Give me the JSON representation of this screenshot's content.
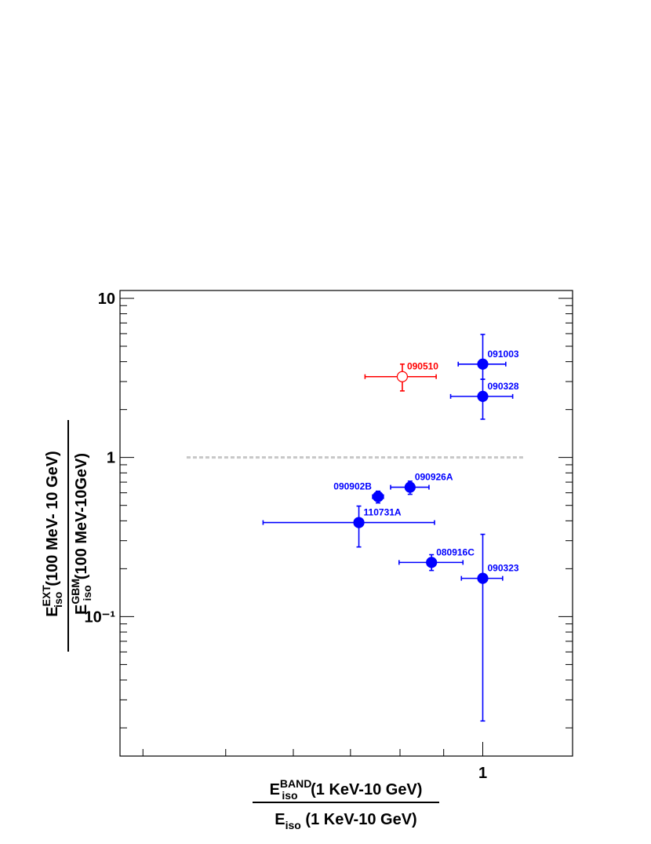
{
  "chart_data": {
    "type": "scatter",
    "xscale": "log",
    "yscale": "log",
    "xlim": [
      0.376,
      1.274
    ],
    "ylim": [
      0.0133,
      11.2
    ],
    "xticks": [
      1
    ],
    "xminor": [
      0.4,
      0.5,
      0.6,
      0.7,
      0.8,
      0.9
    ],
    "yticks": [
      10,
      1,
      {
        "value": 0.1,
        "label": "10⁻¹"
      }
    ],
    "yminor": [
      0.02,
      0.03,
      0.04,
      0.05,
      0.06,
      0.07,
      0.08,
      0.09,
      0.2,
      0.3,
      0.4,
      0.5,
      0.6,
      0.7,
      0.8,
      0.9,
      2,
      3,
      4,
      5,
      6,
      7,
      8,
      9
    ],
    "hline": {
      "y": 1,
      "xrange": [
        0.45,
        1.12
      ],
      "color": "#c8c8c8"
    },
    "x_title": {
      "num": {
        "base": "E",
        "sup": "BAND",
        "sub": "iso",
        "rest": " (1 KeV-10 GeV)"
      },
      "den": {
        "base": "E",
        "sub": "iso",
        "rest": " (1 KeV-10 GeV)"
      }
    },
    "y_title": {
      "num": {
        "base": "E",
        "sup": "EXT",
        "sub": "iso",
        "rest": " (100 MeV- 10 GeV)"
      },
      "den": {
        "base": "E",
        "sup": "GBM",
        "sub": "iso",
        "rest": " (100 MeV-10GeV)"
      }
    },
    "points": [
      {
        "label": "091003",
        "color": "#0000ff",
        "open": false,
        "x": 1.0,
        "y": 3.86,
        "xrange": [
          0.936,
          1.064
        ],
        "yrange": [
          3.1,
          5.93
        ]
      },
      {
        "label": "090328",
        "color": "#0000ff",
        "open": false,
        "x": 1.0,
        "y": 2.42,
        "xrange": [
          0.917,
          1.084
        ],
        "yrange": [
          1.74,
          3.1
        ]
      },
      {
        "label": "090510",
        "color": "#ff0000",
        "open": true,
        "x": 0.805,
        "y": 3.22,
        "xrange": [
          0.728,
          0.882
        ],
        "yrange": [
          2.62,
          3.86
        ]
      },
      {
        "label": "090926A",
        "color": "#0000ff",
        "open": false,
        "x": 0.822,
        "y": 0.65,
        "xrange": [
          0.78,
          0.865
        ],
        "yrange": [
          0.587,
          0.71
        ]
      },
      {
        "label": "090902B",
        "color": "#0000ff",
        "open": false,
        "x": 0.754,
        "y": 0.567,
        "xrange": [
          0.743,
          0.765
        ],
        "yrange": [
          0.518,
          0.614
        ]
      },
      {
        "label": "110731A",
        "color": "#0000ff",
        "open": false,
        "x": 0.716,
        "y": 0.39,
        "xrange": [
          0.553,
          0.878
        ],
        "yrange": [
          0.274,
          0.495
        ]
      },
      {
        "label": "080916C",
        "color": "#0000ff",
        "open": false,
        "x": 0.871,
        "y": 0.219,
        "xrange": [
          0.798,
          0.948
        ],
        "yrange": [
          0.195,
          0.245
        ]
      },
      {
        "label": "090323",
        "color": "#0000ff",
        "open": false,
        "x": 1.0,
        "y": 0.174,
        "xrange": [
          0.944,
          1.055
        ],
        "yrange": [
          0.0221,
          0.329
        ]
      }
    ]
  }
}
